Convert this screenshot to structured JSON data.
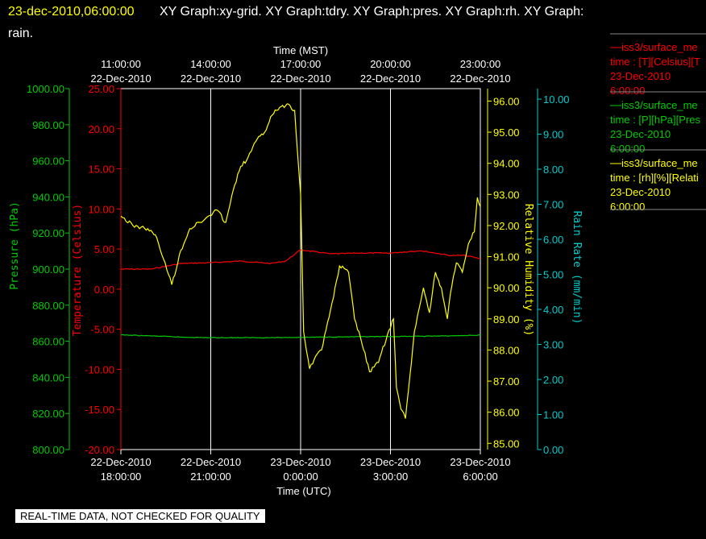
{
  "header": {
    "datetime": "23-dec-2010,06:00:00",
    "line1": "XY Graph:xy-grid.  XY Graph:tdry.  XY Graph:pres.  XY Graph:rh.  XY Graph:",
    "line2": "rain."
  },
  "footer": {
    "banner": "REAL-TIME DATA, NOT CHECKED FOR QUALITY"
  },
  "colors": {
    "temperature": "#ff0000",
    "pressure": "#00cc00",
    "humidity": "#ffff00",
    "rain": "#00cccc",
    "grid": "#ffffff"
  },
  "chart_data": {
    "type": "line",
    "top_axis": {
      "title": "Time (MST)",
      "ticks": [
        {
          "time": "11:00:00",
          "date": "22-Dec-2010"
        },
        {
          "time": "14:00:00",
          "date": "22-Dec-2010"
        },
        {
          "time": "17:00:00",
          "date": "22-Dec-2010"
        },
        {
          "time": "20:00:00",
          "date": "22-Dec-2010"
        },
        {
          "time": "23:00:00",
          "date": "22-Dec-2010"
        }
      ]
    },
    "bottom_axis": {
      "title": "Time (UTC)",
      "range_hours": [
        0,
        12
      ],
      "ticks": [
        {
          "date": "22-Dec-2010",
          "time": "18:00:00"
        },
        {
          "date": "22-Dec-2010",
          "time": "21:00:00"
        },
        {
          "date": "23-Dec-2010",
          "time": "0:00:00"
        },
        {
          "date": "23-Dec-2010",
          "time": "3:00:00"
        },
        {
          "date": "23-Dec-2010",
          "time": "6:00:00"
        }
      ]
    },
    "axes": {
      "pressure": {
        "label": "Pressure (hPa)",
        "ylim": [
          800,
          1000
        ],
        "ticks": [
          "1000.00",
          "980.00",
          "960.00",
          "940.00",
          "920.00",
          "900.00",
          "880.00",
          "860.00",
          "840.00",
          "820.00",
          "800.00"
        ]
      },
      "temperature": {
        "label": "Temperature (Celsius)",
        "ylim": [
          -20,
          25
        ],
        "ticks": [
          "25.00",
          "20.00",
          "15.00",
          "10.00",
          "5.00",
          "0.00",
          "-5.00",
          "-10.00",
          "-15.00",
          "-20.00"
        ]
      },
      "humidity": {
        "label": "Relative Humidity (%)",
        "ylim": [
          84.8,
          96.4
        ],
        "ticks": [
          "96.00",
          "95.00",
          "94.00",
          "93.00",
          "92.00",
          "91.00",
          "90.00",
          "89.00",
          "88.00",
          "87.00",
          "86.00",
          "85.00"
        ]
      },
      "rain": {
        "label": "Rain Rate (mm/min)",
        "ylim": [
          0,
          10.3
        ],
        "ticks": [
          "10.00",
          "9.00",
          "8.00",
          "7.00",
          "6.00",
          "5.00",
          "4.00",
          "3.00",
          "2.00",
          "1.00",
          "0.00"
        ]
      }
    },
    "series": [
      {
        "name": "iss3/surface_me",
        "axis": "temperature",
        "x": [
          0,
          1,
          2,
          3,
          4,
          5,
          5.5,
          6,
          7,
          8,
          9,
          10,
          11,
          11.5,
          12
        ],
        "y": [
          2.5,
          2.5,
          3.2,
          3.3,
          3.5,
          3.2,
          3.5,
          4.9,
          4.4,
          4.5,
          4.5,
          4.8,
          4.2,
          4.2,
          3.8
        ]
      },
      {
        "name": "iss3/surface_me",
        "axis": "pressure",
        "x": [
          0,
          1,
          2,
          3,
          4,
          5,
          6,
          7,
          8,
          9,
          10,
          11,
          12
        ],
        "y": [
          863.5,
          863,
          862.3,
          862,
          862,
          862,
          862.2,
          862.4,
          862.5,
          862.6,
          862.8,
          863,
          863.4
        ]
      },
      {
        "name": "iss3/surface_me",
        "axis": "humidity",
        "x": [
          0,
          0.4,
          0.9,
          1.2,
          1.7,
          2.0,
          2.3,
          2.8,
          3.2,
          3.5,
          3.8,
          4.0,
          4.2,
          4.5,
          4.8,
          5.0,
          5.3,
          5.6,
          5.8,
          6.0,
          6.1,
          6.3,
          6.5,
          6.7,
          6.9,
          7.1,
          7.3,
          7.6,
          7.8,
          8.0,
          8.3,
          8.6,
          8.9,
          9.1,
          9.2,
          9.35,
          9.5,
          9.7,
          9.8,
          10.1,
          10.3,
          10.5,
          10.7,
          10.9,
          11.0,
          11.2,
          11.4,
          11.6,
          11.8,
          11.9,
          12.0
        ],
        "y": [
          92.3,
          92.0,
          91.9,
          91.6,
          90.1,
          91.2,
          91.9,
          92.2,
          92.5,
          92.1,
          93.3,
          93.9,
          94.1,
          94.7,
          95.0,
          95.5,
          95.8,
          95.9,
          95.7,
          93.0,
          88.6,
          87.4,
          87.8,
          88.0,
          88.9,
          89.7,
          90.7,
          90.5,
          89.0,
          88.4,
          87.3,
          87.6,
          88.5,
          89.0,
          86.8,
          86.1,
          85.8,
          87.6,
          88.6,
          90.0,
          89.2,
          90.5,
          90.0,
          89.0,
          89.8,
          90.8,
          90.5,
          91.4,
          91.8,
          92.9,
          92.6
        ]
      }
    ],
    "legend": {
      "placement": "right",
      "entries": [
        {
          "series": "iss3/surface_me",
          "line": "time : [T][Celsius][T",
          "date": "23-Dec-2010",
          "time": "6:00:00",
          "color": "#ff0000"
        },
        {
          "series": "iss3/surface_me",
          "line": "time : [P][hPa][Pres",
          "date": "23-Dec-2010",
          "time": "6:00:00",
          "color": "#00cc00"
        },
        {
          "series": "iss3/surface_me",
          "line": "time : [rh][%][Relati",
          "date": "23-Dec-2010",
          "time": "6:00:00",
          "color": "#ffff00"
        }
      ]
    }
  }
}
